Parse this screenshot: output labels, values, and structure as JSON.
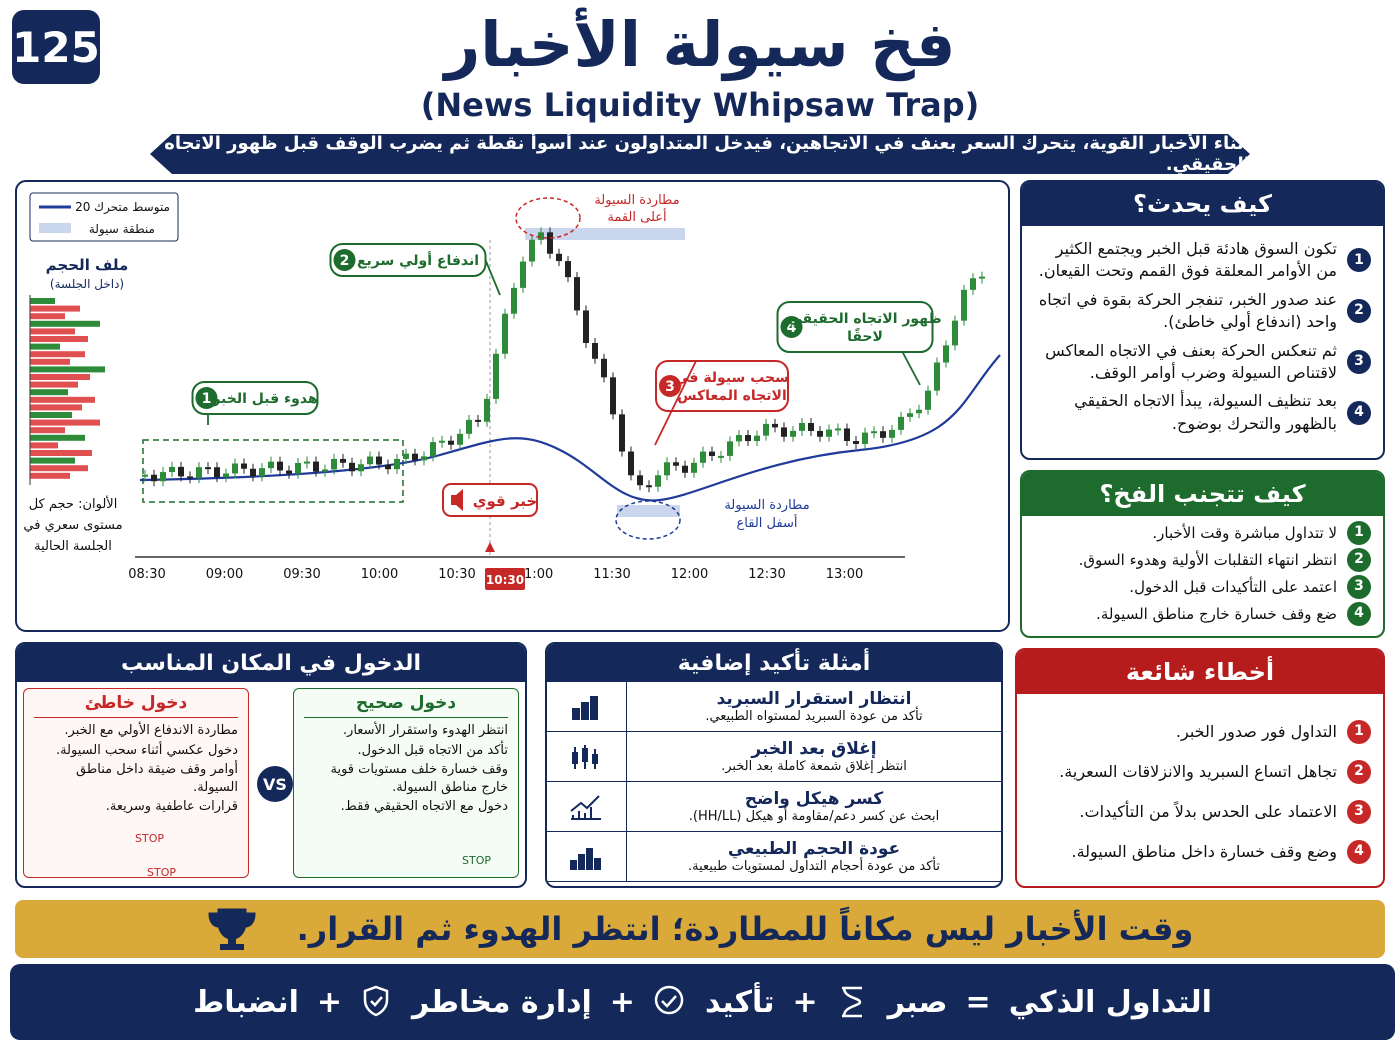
{
  "badge": "125",
  "title": "فخ سيولة الأخبار",
  "subtitle": "(News Liquidity Whipsaw Trap)",
  "banner": "أثناء الأخبار القوية، يتحرك السعر بعنف في الاتجاهين، فيدخل المتداولون عند أسوأ نقطة ثم يضرب الوقف قبل ظهور الاتجاه الحقيقي.",
  "chart": {
    "legend": [
      "متوسط متحرك 20",
      "منطقة سيولة"
    ],
    "volume_title": "ملف الحجم",
    "volume_sub": "(داخل الجلسة)",
    "colors_note": [
      "الألوان: حجم كل",
      "مستوى سعري في",
      "الجلسة الحالية"
    ],
    "x_labels": [
      "08:30",
      "09:00",
      "09:30",
      "10:00",
      "10:30",
      "11:00",
      "11:30",
      "12:00",
      "12:30",
      "13:00"
    ],
    "news_time": "10:30",
    "news_label": "خبر قوي",
    "top_hunt": [
      "مطاردة السيولة",
      "أعلى القمة"
    ],
    "bottom_hunt": [
      "مطاردة السيولة",
      "أسفل القاع"
    ],
    "annotations": [
      {
        "n": "1",
        "lines": [
          "هدوء قبل الخبر"
        ]
      },
      {
        "n": "2",
        "lines": [
          "اندفاع أولي سريع"
        ]
      },
      {
        "n": "3",
        "lines": [
          "سحب سيولة في",
          "الاتجاه المعاكس"
        ]
      },
      {
        "n": "4",
        "lines": [
          "ظهور الاتجاه الحقيقي",
          "لاحقًا"
        ]
      }
    ]
  },
  "how": {
    "title": "كيف يحدث؟",
    "items": [
      {
        "n": "1",
        "text": "تكون السوق هادئة قبل الخبر ويجتمع الكثير من الأوامر المعلقة فوق القمم وتحت القيعان."
      },
      {
        "n": "2",
        "text": "عند صدور الخبر، تنفجر الحركة بقوة في اتجاه واحد (اندفاع أولي خاطئ)."
      },
      {
        "n": "3",
        "text": "ثم تنعكس الحركة بعنف في الاتجاه المعاكس لاقتناص السيولة وضرب أوامر الوقف."
      },
      {
        "n": "4",
        "text": "بعد تنظيف السيولة، يبدأ الاتجاه الحقيقي بالظهور والتحرك بوضوح."
      }
    ]
  },
  "avoid": {
    "title": "كيف تتجنب الفخ؟",
    "items": [
      {
        "n": "1",
        "text": "لا تتداول مباشرة وقت الأخبار."
      },
      {
        "n": "2",
        "text": "انتظر انتهاء التقلبات الأولية وهدوء السوق."
      },
      {
        "n": "3",
        "text": "اعتمد على التأكيدات قبل الدخول."
      },
      {
        "n": "4",
        "text": "ضع وقف خسارة خارج مناطق السيولة."
      }
    ]
  },
  "entry": {
    "title": "الدخول في المكان المناسب",
    "vs": "VS",
    "right": {
      "title": "دخول صحيح",
      "items": [
        "انتظر الهدوء واستقرار الأسعار.",
        "تأكد من الاتجاه قبل الدخول.",
        "وقف خسارة خلف مستويات قوية خارج مناطق السيولة.",
        "دخول مع الاتجاه الحقيقي فقط."
      ],
      "stop": "STOP"
    },
    "wrong": {
      "title": "دخول خاطئ",
      "items": [
        "مطاردة الاندفاع الأولي مع الخبر.",
        "دخول عكسي أثناء سحب السيولة.",
        "أوامر وقف ضيقة داخل مناطق السيولة.",
        "قرارات عاطفية وسريعة."
      ],
      "stops": [
        "STOP",
        "STOP"
      ]
    }
  },
  "confirm": {
    "title": "أمثلة تأكيد إضافية",
    "items": [
      {
        "title": "انتظار استقرار السبريد",
        "text": "تأكد من عودة السبريد لمستواه الطبيعي."
      },
      {
        "title": "إغلاق بعد الخبر",
        "text": "انتظر إغلاق شمعة كاملة بعد الخبر."
      },
      {
        "title": "كسر هيكل واضح",
        "text": "ابحث عن كسر دعم/مقاومة أو هيكل (HH/LL)."
      },
      {
        "title": "عودة الحجم الطبيعي",
        "text": "تأكد من عودة أحجام التداول لمستويات طبيعية."
      }
    ]
  },
  "mistakes": {
    "title": "أخطاء شائعة",
    "items": [
      {
        "n": "1",
        "text": "التداول فور صدور الخبر."
      },
      {
        "n": "2",
        "text": "تجاهل اتساع السبريد والانزلاقات السعرية."
      },
      {
        "n": "3",
        "text": "الاعتماد على الحدس بدلاً من التأكيدات."
      },
      {
        "n": "4",
        "text": "وضع وقف خسارة داخل مناطق السيولة."
      }
    ]
  },
  "quote": "وقت الأخبار ليس مكاناً للمطاردة؛ انتظر الهدوء ثم القرار.",
  "footer": [
    "التداول الذكي",
    "=",
    "صبر",
    "+",
    "تأكيد",
    "+",
    "إدارة مخاطر",
    "+",
    "انضباط"
  ]
}
